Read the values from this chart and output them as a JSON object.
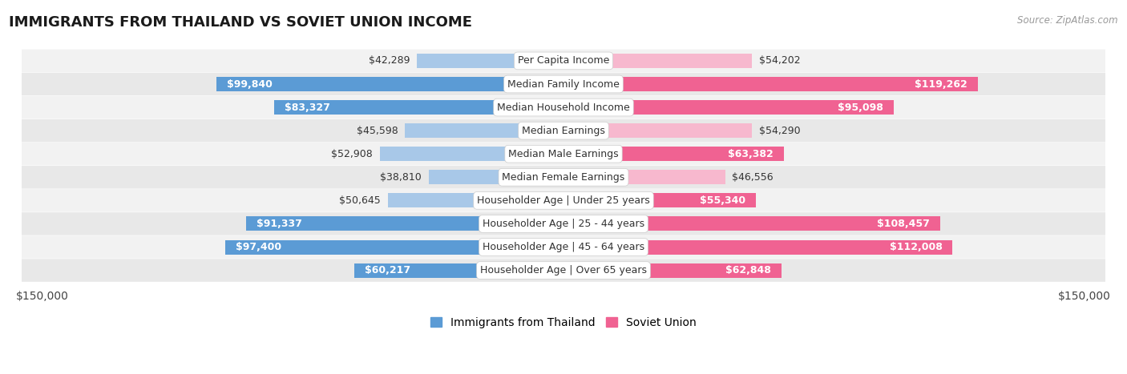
{
  "title": "IMMIGRANTS FROM THAILAND VS SOVIET UNION INCOME",
  "source": "Source: ZipAtlas.com",
  "categories": [
    "Per Capita Income",
    "Median Family Income",
    "Median Household Income",
    "Median Earnings",
    "Median Male Earnings",
    "Median Female Earnings",
    "Householder Age | Under 25 years",
    "Householder Age | 25 - 44 years",
    "Householder Age | 45 - 64 years",
    "Householder Age | Over 65 years"
  ],
  "thailand_values": [
    42289,
    99840,
    83327,
    45598,
    52908,
    38810,
    50645,
    91337,
    97400,
    60217
  ],
  "soviet_values": [
    54202,
    119262,
    95098,
    54290,
    63382,
    46556,
    55340,
    108457,
    112008,
    62848
  ],
  "thailand_labels": [
    "$42,289",
    "$99,840",
    "$83,327",
    "$45,598",
    "$52,908",
    "$38,810",
    "$50,645",
    "$91,337",
    "$97,400",
    "$60,217"
  ],
  "soviet_labels": [
    "$54,202",
    "$119,262",
    "$95,098",
    "$54,290",
    "$63,382",
    "$46,556",
    "$55,340",
    "$108,457",
    "$112,008",
    "$62,848"
  ],
  "max_val": 150000,
  "thailand_color_light": "#a8c8e8",
  "thailand_color_dark": "#5b9bd5",
  "soviet_color_light": "#f7b8ce",
  "soviet_color_dark": "#f06292",
  "row_colors": [
    "#f2f2f2",
    "#e8e8e8"
  ],
  "label_fontsize": 9,
  "title_fontsize": 13,
  "legend_thailand": "Immigrants from Thailand",
  "legend_soviet": "Soviet Union",
  "axis_label_left": "$150,000",
  "axis_label_right": "$150,000",
  "inside_threshold": 55000
}
